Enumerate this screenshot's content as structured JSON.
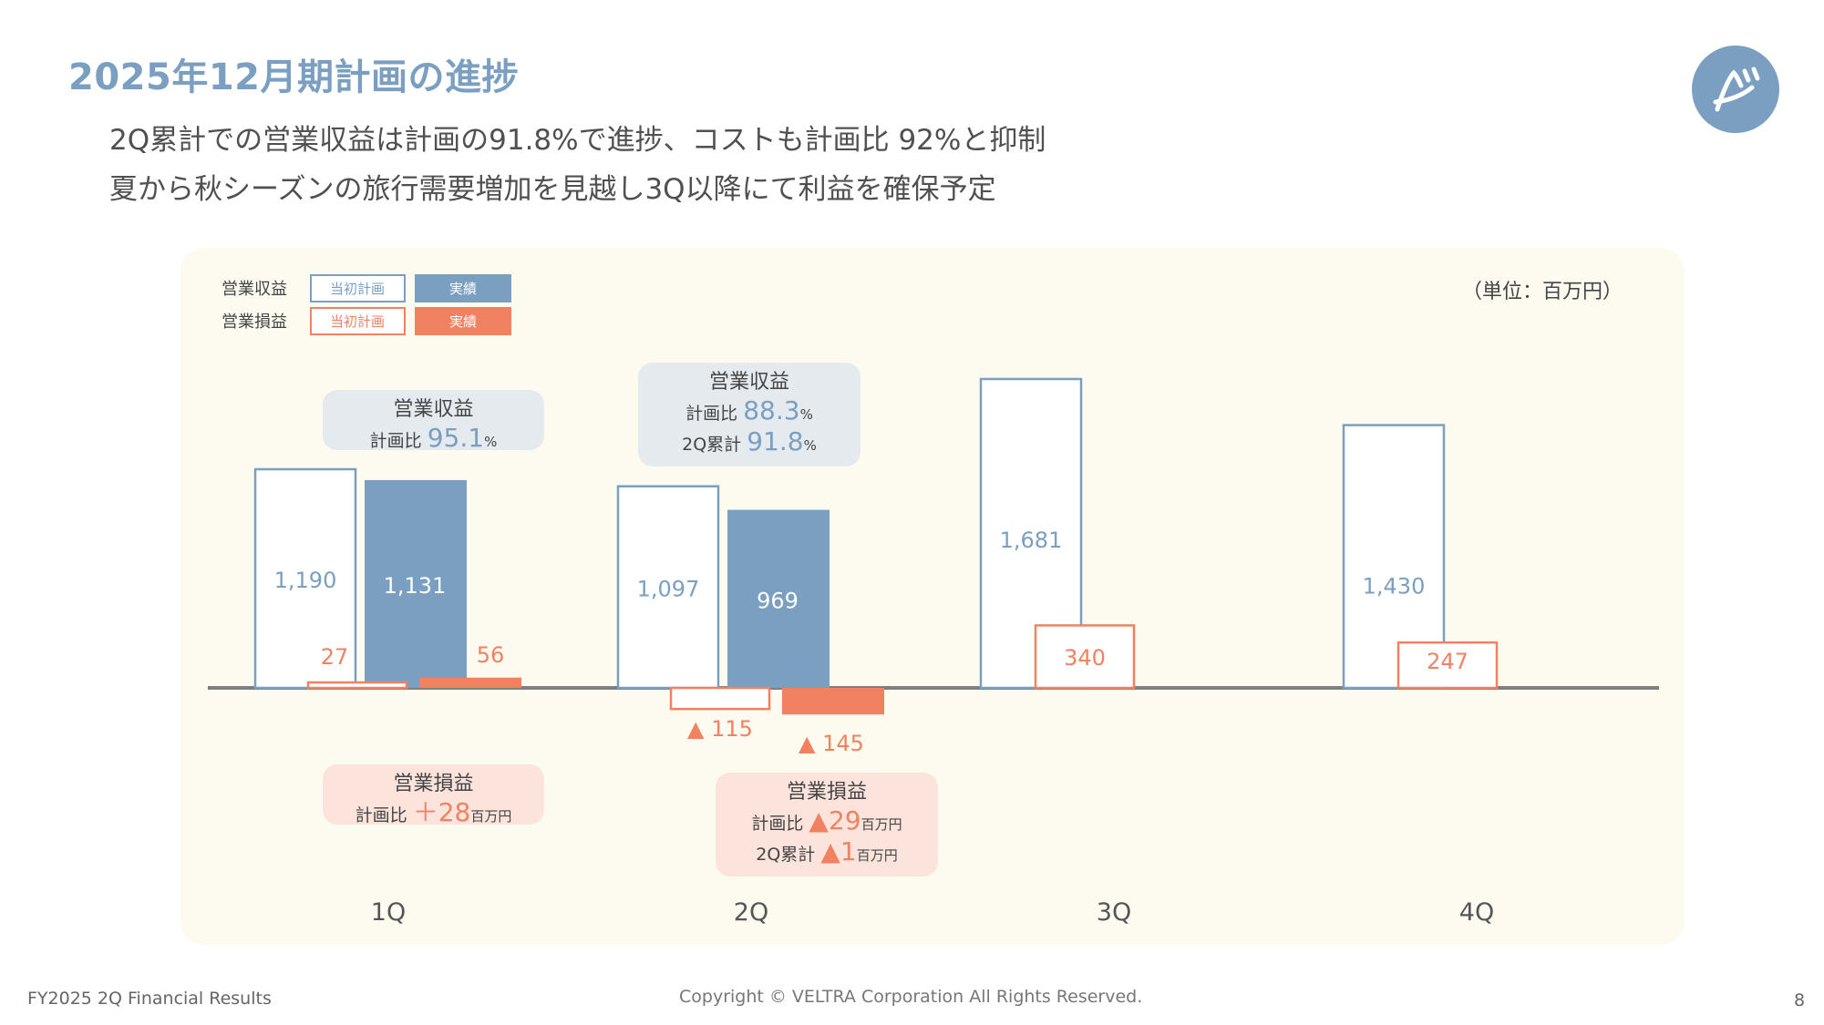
{
  "header": {
    "title": "2025年12月期計画の進捗",
    "subtitle_line1": "2Q累計での営業収益は計画の91.8%で進捗、コストも計画比 92%と抑制",
    "subtitle_line2": "夏から秋シーズンの旅行需要増加を見越し3Q以降にて利益を確保予定"
  },
  "logo": {
    "icon": "veltra-logo-icon",
    "color": "#7a9fc1"
  },
  "footer": {
    "left": "FY2025 2Q Financial Results",
    "center": "Copyright © VELTRA Corporation All Rights Reserved.",
    "page": "8"
  },
  "chart_data": {
    "type": "bar",
    "unit": "（単位：百万円）",
    "categories": [
      "1Q",
      "2Q",
      "3Q",
      "4Q"
    ],
    "legend": {
      "rows": [
        {
          "label": "営業収益",
          "plan_label": "当初計画",
          "actual_label": "実績"
        },
        {
          "label": "営業損益",
          "plan_label": "当初計画",
          "actual_label": "実績"
        }
      ]
    },
    "series": [
      {
        "name": "営業収益 当初計画",
        "values": [
          1190,
          1097,
          1681,
          1430
        ],
        "display": [
          "1,190",
          "1,097",
          "1,681",
          "1,430"
        ]
      },
      {
        "name": "営業収益 実績",
        "values": [
          1131,
          969,
          null,
          null
        ],
        "display": [
          "1,131",
          "969",
          "",
          ""
        ]
      },
      {
        "name": "営業損益 当初計画",
        "values": [
          27,
          -115,
          340,
          247
        ],
        "display": [
          "27",
          "▲ 115",
          "340",
          "247"
        ]
      },
      {
        "name": "営業損益 実績",
        "values": [
          56,
          -145,
          null,
          null
        ],
        "display": [
          "56",
          "▲ 145",
          "",
          ""
        ]
      }
    ],
    "callouts": [
      {
        "category": "1Q",
        "kind": "revenue",
        "title": "営業収益",
        "lines": [
          {
            "label": "計画比",
            "value": "95.1",
            "unit": "%"
          }
        ]
      },
      {
        "category": "2Q",
        "kind": "revenue",
        "title": "営業収益",
        "lines": [
          {
            "label": "計画比",
            "value": "88.3",
            "unit": "%"
          },
          {
            "label": "2Q累計",
            "value": "91.8",
            "unit": "%"
          }
        ]
      },
      {
        "category": "1Q",
        "kind": "profit",
        "title": "営業損益",
        "lines": [
          {
            "label": "計画比",
            "value": "＋28",
            "unit": "百万円"
          }
        ]
      },
      {
        "category": "2Q",
        "kind": "profit",
        "title": "営業損益",
        "lines": [
          {
            "label": "計画比",
            "value": "▲29",
            "unit": "百万円"
          },
          {
            "label": "2Q累計",
            "value": "▲1",
            "unit": "百万円"
          }
        ]
      }
    ],
    "colors": {
      "revenue": "#7a9fc1",
      "profit": "#f08262",
      "revenue_callout_bg": "#e5eaee",
      "profit_callout_bg": "#fce4dc",
      "panel_bg": "#fdfbef",
      "axis": "#7f7f7f"
    }
  }
}
